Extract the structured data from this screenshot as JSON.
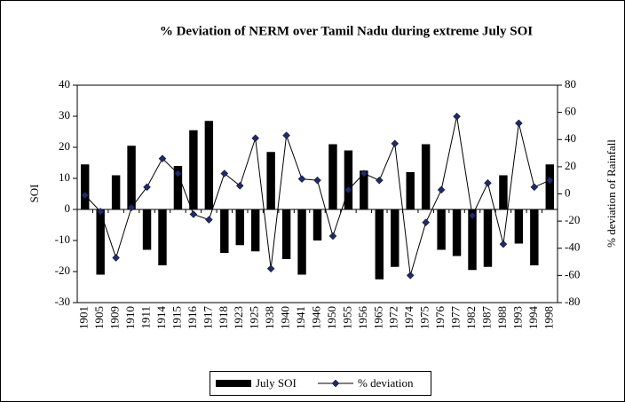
{
  "chart_data": {
    "type": "bar_line",
    "title": "% Deviation of NERM over Tamil Nadu during extreme July SOI",
    "y_label": "SOI",
    "y2_label": "% deviation of Rainfall",
    "categories": [
      "1901",
      "1905",
      "1909",
      "1910",
      "1911",
      "1914",
      "1915",
      "1916",
      "1917",
      "1918",
      "1923",
      "1925",
      "1938",
      "1940",
      "1941",
      "1946",
      "1950",
      "1955",
      "1956",
      "1965",
      "1972",
      "1974",
      "1975",
      "1976",
      "1977",
      "1982",
      "1987",
      "1988",
      "1993",
      "1994",
      "1998"
    ],
    "series": [
      {
        "name": "July SOI",
        "type": "bar",
        "color": "#000000",
        "values": [
          14.5,
          -21,
          11,
          20.5,
          -13,
          -18,
          14,
          25.5,
          28.5,
          -14,
          -11.5,
          -13.5,
          18.5,
          -16,
          -21,
          -10,
          21,
          19,
          12.5,
          -22.5,
          -18.5,
          12,
          21,
          -13,
          -15,
          -19.5,
          -18.5,
          11,
          -11,
          -18,
          14.5
        ]
      },
      {
        "name": "% deviation",
        "type": "line",
        "axis": "y2",
        "color": "#000000",
        "marker_color": "#1f2a6b",
        "values": [
          -1,
          -13,
          -47,
          -10,
          5,
          26,
          15,
          -15,
          -19,
          15,
          6,
          41,
          -55,
          43,
          11,
          10,
          -31,
          3,
          15,
          10,
          37,
          -60,
          -21,
          3,
          57,
          -16,
          8,
          -37,
          52,
          5,
          10
        ]
      }
    ],
    "ylim": [
      -30,
      40
    ],
    "yticks": [
      -30,
      -20,
      -10,
      0,
      10,
      20,
      30,
      40
    ],
    "y2lim": [
      -80,
      80
    ],
    "y2ticks": [
      -80,
      -60,
      -40,
      -20,
      0,
      20,
      40,
      60,
      80
    ]
  }
}
